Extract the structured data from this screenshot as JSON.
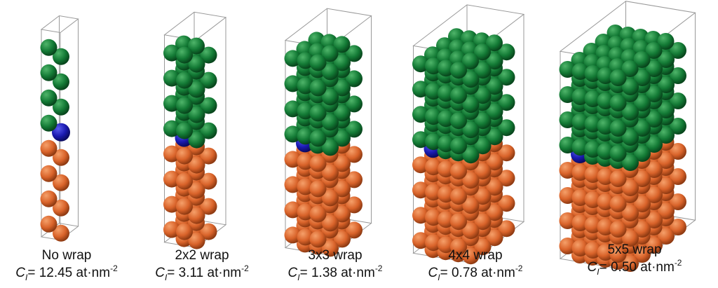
{
  "panels": [
    {
      "label": "No wrap",
      "symbol": "C",
      "subscript": "I",
      "equals": "= ",
      "value": "12.45",
      "unit": " at·nm",
      "exponent": "-2"
    },
    {
      "label": "2x2 wrap",
      "symbol": "C",
      "subscript": "I",
      "equals": "= ",
      "value": "3.11",
      "unit": " at·nm",
      "exponent": "-2"
    },
    {
      "label": "3x3 wrap",
      "symbol": "C",
      "subscript": "I",
      "equals": "= ",
      "value": "1.38",
      "unit": " at·nm",
      "exponent": "-2"
    },
    {
      "label": "4x4 wrap",
      "symbol": "C",
      "subscript": "I",
      "equals": "= ",
      "value": "0.78",
      "unit": " at·nm",
      "exponent": "-2"
    },
    {
      "label": "5x5 wrap",
      "symbol": "C",
      "subscript": "I",
      "equals": "= ",
      "value": "0.50",
      "unit": " at·nm",
      "exponent": "-2"
    }
  ]
}
